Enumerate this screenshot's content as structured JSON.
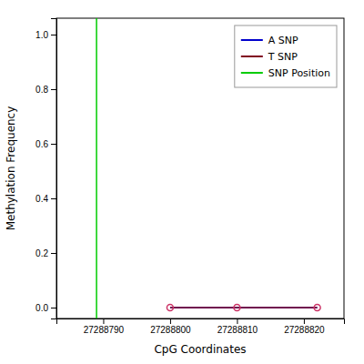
{
  "chart_data": {
    "type": "line",
    "xlabel": "CpG Coordinates",
    "ylabel": "Methylation Frequency",
    "x": [
      27288800,
      27288810,
      27288822
    ],
    "series": [
      {
        "name": "A SNP",
        "color": "#0000cc",
        "line_style": "solid",
        "values": [
          0.0,
          0.0,
          0.0
        ]
      },
      {
        "name": "T SNP",
        "color": "#800020",
        "line_style": "solid",
        "marker": "circle",
        "colors": [
          "#cc3366",
          "#cc3366",
          "#cc3366"
        ],
        "values": [
          0.0,
          0.0,
          0.0
        ]
      },
      {
        "name": "SNP Position",
        "type": "vline",
        "color": "#00cc00",
        "x": 27288789
      }
    ],
    "xlim": [
      27288783,
      27288826
    ],
    "ylim": [
      -0.04,
      1.06
    ],
    "xticks": [
      27288790,
      27288800,
      27288810,
      27288820
    ],
    "yticks": [
      {
        "value": 0,
        "label": "0.0"
      },
      0.2,
      0.4,
      0.6,
      0.8,
      {
        "value": 1,
        "label": "1.0"
      }
    ],
    "grid": false,
    "legend": "top-right"
  }
}
